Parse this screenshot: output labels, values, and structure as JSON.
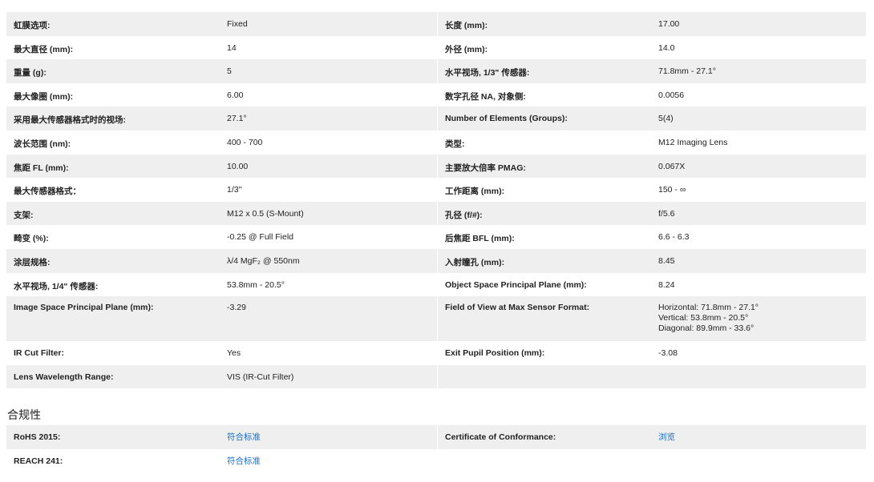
{
  "specs": [
    [
      {
        "label": "虹膜选项:",
        "value": "Fixed"
      },
      {
        "label": "长度 (mm):",
        "value": "17.00"
      }
    ],
    [
      {
        "label": "最大直径 (mm):",
        "value": "14"
      },
      {
        "label": "外径 (mm):",
        "value": "14.0"
      }
    ],
    [
      {
        "label": "重量 (g):",
        "value": "5"
      },
      {
        "label": "水平视场, 1/3\" 传感器:",
        "value": "71.8mm - 27.1°"
      }
    ],
    [
      {
        "label": "最大像圈 (mm):",
        "value": "6.00"
      },
      {
        "label": "数字孔径 NA, 对象侧:",
        "value": "0.0056"
      }
    ],
    [
      {
        "label": "采用最大传感器格式时的视场:",
        "value": "27.1°"
      },
      {
        "label": "Number of Elements (Groups):",
        "value": "5(4)"
      }
    ],
    [
      {
        "label": "波长范围 (nm):",
        "value": "400 - 700"
      },
      {
        "label": "类型:",
        "value": "M12 Imaging Lens"
      }
    ],
    [
      {
        "label": "焦距 FL (mm):",
        "value": "10.00"
      },
      {
        "label": "主要放大倍率 PMAG:",
        "value": "0.067X"
      }
    ],
    [
      {
        "label": "最大传感器格式：",
        "value": "1/3\""
      },
      {
        "label": "工作距离 (mm):",
        "value": "150 - ∞"
      }
    ],
    [
      {
        "label": "支架:",
        "value": "M12 x 0.5 (S-Mount)"
      },
      {
        "label": "孔径 (f/#):",
        "value": "f/5.6"
      }
    ],
    [
      {
        "label": "畸变 (%):",
        "value": "-0.25 @ Full Field"
      },
      {
        "label": "后焦距 BFL (mm):",
        "value": "6.6 - 6.3"
      }
    ],
    [
      {
        "label": "涂层规格:",
        "value": "λ/4 MgF₂ @ 550nm"
      },
      {
        "label": "入射瞳孔 (mm):",
        "value": "8.45"
      }
    ],
    [
      {
        "label": "水平视场, 1/4\" 传感器:",
        "value": "53.8mm - 20.5°"
      },
      {
        "label": "Object Space Principal Plane (mm):",
        "value": "8.24"
      }
    ],
    [
      {
        "label": "Image Space Principal Plane (mm):",
        "value": "-3.29"
      },
      {
        "label": "Field of View at Max Sensor Format:",
        "lines": [
          "Horizontal: 71.8mm - 27.1°",
          "Vertical: 53.8mm - 20.5°",
          "Diagonal: 89.9mm - 33.6°"
        ]
      }
    ],
    [
      {
        "label": "IR Cut Filter:",
        "value": "Yes"
      },
      {
        "label": "Exit Pupil Position (mm):",
        "value": "-3.08"
      }
    ],
    [
      {
        "label": "Lens Wavelength Range:",
        "value": "VIS (IR-Cut Filter)"
      }
    ]
  ],
  "compliance_title": "合规性",
  "compliance": [
    [
      {
        "label": "RoHS 2015:",
        "value": "符合标准",
        "link": true
      },
      {
        "label": "Certificate of Conformance:",
        "value": "浏览",
        "link": true
      }
    ],
    [
      {
        "label": "REACH 241:",
        "value": "符合标准",
        "link": true
      }
    ]
  ],
  "colors": {
    "row_alt": "#efefef",
    "link": "#1a6fc4"
  }
}
